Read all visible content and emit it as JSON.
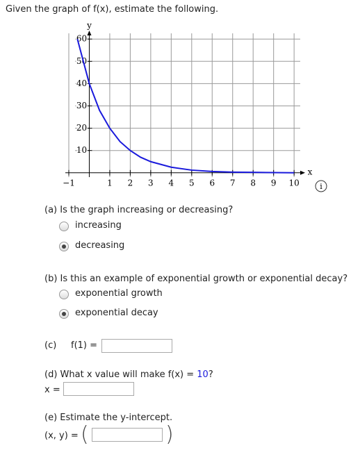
{
  "header": {
    "prompt": "Given the graph of f(x), estimate the following."
  },
  "chart_data": {
    "type": "line",
    "x_label": "x",
    "y_label": "y",
    "x": [
      -0.58,
      0,
      0.5,
      1,
      1.5,
      2,
      2.5,
      3,
      4,
      5,
      6,
      7,
      8,
      9,
      10
    ],
    "series": [
      {
        "color": "#1a1adc",
        "values": [
          60,
          40,
          28,
          20,
          14,
          10,
          7,
          5,
          2.5,
          1.2,
          0.6,
          0.3,
          0.2,
          0.1,
          0
        ]
      }
    ],
    "xlim": [
      -1,
      10.3
    ],
    "ylim": [
      -1,
      61
    ],
    "xticks": [
      {
        "value": -1,
        "label": "−1"
      },
      1,
      2,
      3,
      4,
      5,
      6,
      7,
      8,
      9,
      10
    ],
    "yticks": [
      10,
      20,
      30,
      40,
      50,
      60
    ],
    "grid": true
  },
  "questions": {
    "a": {
      "label": "(a) Is the graph increasing or decreasing?",
      "options": [
        "increasing",
        "decreasing"
      ],
      "selected": 1
    },
    "b": {
      "label": "(b) Is this an example of exponential growth or exponential decay?",
      "options": [
        "exponential growth",
        "exponential decay"
      ],
      "selected": 1
    },
    "c": {
      "label": "(c)",
      "expr": "f(1) ="
    },
    "d": {
      "label": "(d) What x value will make f(x) = ",
      "target": "10",
      "end": "?",
      "expr": "x ="
    },
    "e": {
      "label": "(e) Estimate the y-intercept.",
      "expr": "(x, y) ="
    }
  }
}
